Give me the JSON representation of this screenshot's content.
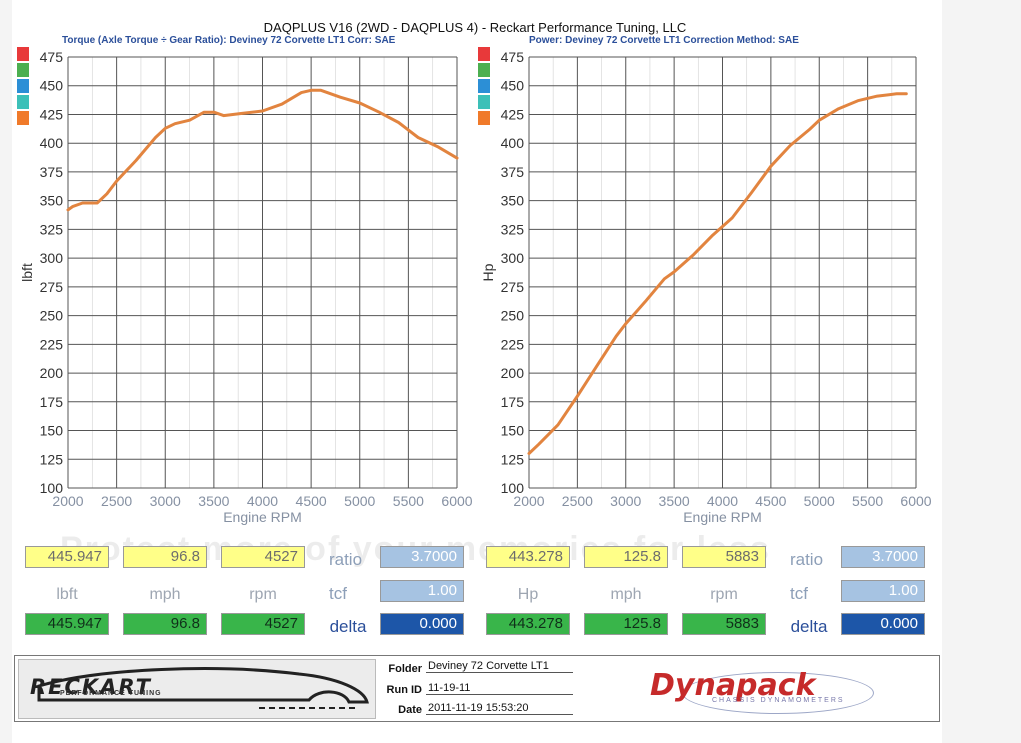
{
  "header": {
    "title": "DAQPLUS V16 (2WD - DAQPLUS 4) - Reckart Performance Tuning, LLC"
  },
  "panels": [
    {
      "title": "Torque (Axle Torque ÷ Gear Ratio): Deviney 72 Corvette LT1     Corr: SAE",
      "readout": {
        "top": [
          "445.947",
          "96.8",
          "4527"
        ],
        "units": [
          "lbft",
          "mph",
          "rpm"
        ],
        "bottom": [
          "445.947",
          "96.8",
          "4527"
        ],
        "ratio_label": "ratio",
        "ratio": "3.7000",
        "tcf_label": "tcf",
        "tcf": "1.00",
        "delta_label": "delta",
        "delta": "0.000"
      }
    },
    {
      "title": "Power: Deviney 72 Corvette LT1      Correction Method: SAE",
      "readout": {
        "top": [
          "443.278",
          "125.8",
          "5883"
        ],
        "units": [
          "Hp",
          "mph",
          "rpm"
        ],
        "bottom": [
          "443.278",
          "125.8",
          "5883"
        ],
        "ratio_label": "ratio",
        "ratio": "3.7000",
        "tcf_label": "tcf",
        "tcf": "1.00",
        "delta_label": "delta",
        "delta": "0.000"
      }
    }
  ],
  "swatch_colors": [
    "#e8393a",
    "#4caf50",
    "#2c8fd6",
    "#3cc0b8",
    "#f07a2a"
  ],
  "watermark": "Protect more of your memories for less",
  "footer": {
    "logo_text": "RECKART",
    "logo_sub": "PERFORMANCE TUNING",
    "folder_label": "Folder",
    "folder": "Deviney 72 Corvette LT1",
    "runid_label": "Run ID",
    "runid": "11-19-11",
    "date_label": "Date",
    "date": "2011-11-19 15:53:20",
    "brand": "Dynapack",
    "brand_sub": "CHASSIS DYNAMOMETERS"
  },
  "chart_data": [
    {
      "type": "line",
      "xlabel": "Engine RPM",
      "ylabel": "lbft",
      "xlim": [
        2000,
        6000
      ],
      "ylim": [
        100,
        475
      ],
      "xticks": [
        2000,
        2500,
        3000,
        3500,
        4000,
        4500,
        5000,
        5500,
        6000
      ],
      "yticks": [
        100,
        125,
        150,
        175,
        200,
        225,
        250,
        275,
        300,
        325,
        350,
        375,
        400,
        425,
        450,
        475
      ],
      "grid": true,
      "color": "#e2843f",
      "x": [
        2000,
        2050,
        2150,
        2300,
        2400,
        2500,
        2700,
        2900,
        3000,
        3100,
        3250,
        3400,
        3500,
        3600,
        3800,
        4000,
        4200,
        4400,
        4500,
        4600,
        4800,
        5000,
        5200,
        5400,
        5600,
        5800,
        6000
      ],
      "y": [
        342,
        345,
        348,
        348,
        356,
        367,
        385,
        405,
        413,
        417,
        420,
        427,
        427,
        424,
        426,
        428,
        434,
        444,
        446,
        446,
        440,
        435,
        427,
        418,
        405,
        397,
        387
      ]
    },
    {
      "type": "line",
      "xlabel": "Engine RPM",
      "ylabel": "Hp",
      "xlim": [
        2000,
        6000
      ],
      "ylim": [
        100,
        475
      ],
      "xticks": [
        2000,
        2500,
        3000,
        3500,
        4000,
        4500,
        5000,
        5500,
        6000
      ],
      "yticks": [
        100,
        125,
        150,
        175,
        200,
        225,
        250,
        275,
        300,
        325,
        350,
        375,
        400,
        425,
        450,
        475
      ],
      "grid": true,
      "color": "#e2843f",
      "x": [
        2000,
        2100,
        2300,
        2500,
        2700,
        2900,
        3000,
        3200,
        3400,
        3500,
        3700,
        3900,
        4100,
        4300,
        4500,
        4700,
        4900,
        5000,
        5200,
        5400,
        5600,
        5800,
        5900
      ],
      "y": [
        130,
        138,
        155,
        180,
        206,
        232,
        243,
        262,
        282,
        288,
        303,
        320,
        335,
        357,
        380,
        398,
        412,
        420,
        430,
        437,
        441,
        443,
        443
      ]
    }
  ]
}
